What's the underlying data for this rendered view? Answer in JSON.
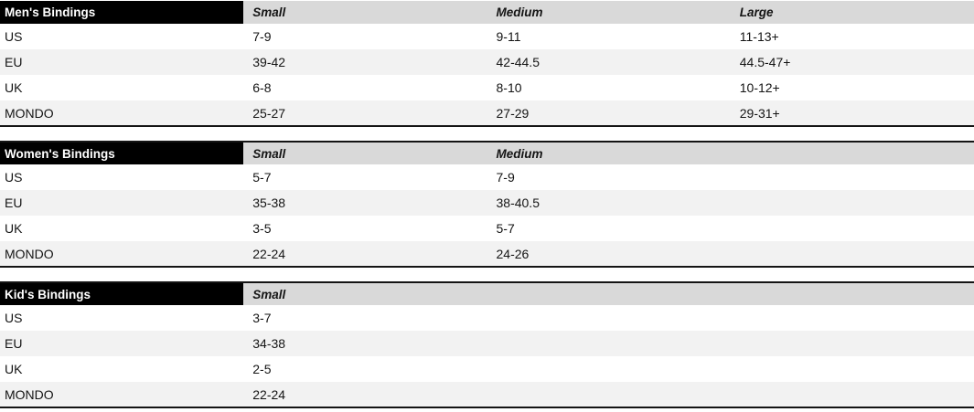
{
  "colors": {
    "title_bg": "#000000",
    "title_text": "#ffffff",
    "subheader_bg": "#d9d9d9",
    "stripe_bg": "#f2f2f2",
    "rule": "#141414"
  },
  "tables": [
    {
      "title": "Men's Bindings",
      "columns": [
        "Small",
        "Medium",
        "Large"
      ],
      "rows": [
        {
          "label": "US",
          "values": [
            "7-9",
            "9-11",
            "11-13+"
          ]
        },
        {
          "label": "EU",
          "values": [
            "39-42",
            "42-44.5",
            "44.5-47+"
          ]
        },
        {
          "label": "UK",
          "values": [
            "6-8",
            "8-10",
            "10-12+"
          ]
        },
        {
          "label": "MONDO",
          "values": [
            "25-27",
            "27-29",
            "29-31+"
          ]
        }
      ]
    },
    {
      "title": "Women's Bindings",
      "columns": [
        "Small",
        "Medium"
      ],
      "rows": [
        {
          "label": "US",
          "values": [
            "5-7",
            "7-9"
          ]
        },
        {
          "label": "EU",
          "values": [
            "35-38",
            "38-40.5"
          ]
        },
        {
          "label": "UK",
          "values": [
            "3-5",
            "5-7"
          ]
        },
        {
          "label": "MONDO",
          "values": [
            "22-24",
            "24-26"
          ]
        }
      ]
    },
    {
      "title": "Kid's Bindings",
      "columns": [
        "Small"
      ],
      "rows": [
        {
          "label": "US",
          "values": [
            "3-7"
          ]
        },
        {
          "label": "EU",
          "values": [
            "34-38"
          ]
        },
        {
          "label": "UK",
          "values": [
            "2-5"
          ]
        },
        {
          "label": "MONDO",
          "values": [
            "22-24"
          ]
        }
      ]
    }
  ]
}
